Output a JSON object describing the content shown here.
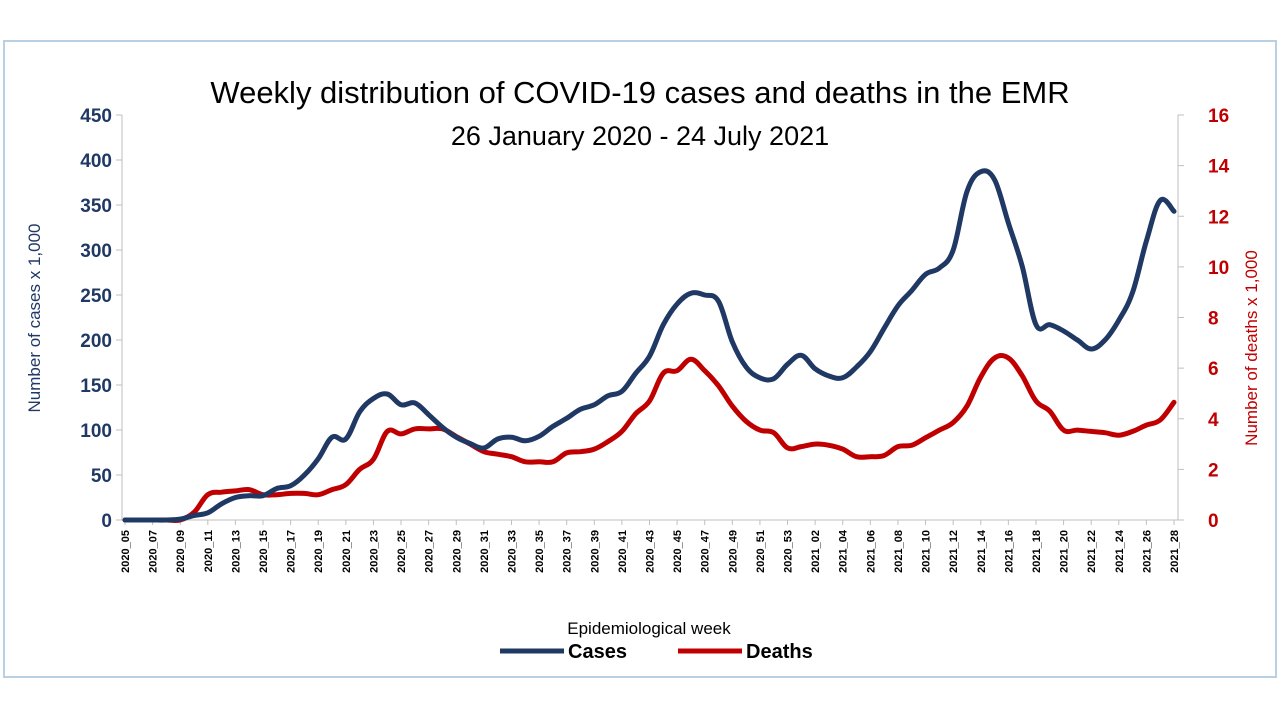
{
  "chart_data": {
    "type": "line",
    "title": "Weekly distribution of COVID-19 cases and deaths in the EMR",
    "subtitle": "26 January 2020 - 24 July 2021",
    "xlabel": "Epidemiological week",
    "ylabel_left": "Number of cases x 1,000",
    "ylabel_right": "Number of deaths x 1,000",
    "ylim_left": [
      0,
      450
    ],
    "ylim_right": [
      0,
      16
    ],
    "yticks_left": [
      "0",
      "50",
      "100",
      "150",
      "200",
      "250",
      "300",
      "350",
      "400",
      "450"
    ],
    "yticks_right": [
      "0",
      "2",
      "4",
      "6",
      "8",
      "10",
      "12",
      "14",
      "16"
    ],
    "xtick_labels": [
      "2020_05",
      "2020_07",
      "2020_09",
      "2020_11",
      "2020_13",
      "2020_15",
      "2020_17",
      "2020_19",
      "2020_21",
      "2020_23",
      "2020_25",
      "2020_27",
      "2020_29",
      "2020_31",
      "2020_33",
      "2020_35",
      "2020_37",
      "2020_39",
      "2020_41",
      "2020_43",
      "2020_45",
      "2020_47",
      "2020_49",
      "2020_51",
      "2020_53",
      "2021_02",
      "2021_04",
      "2021_06",
      "2021_08",
      "2021_10",
      "2021_12",
      "2021_14",
      "2021_16",
      "2021_18",
      "2021_20",
      "2021_22",
      "2021_24",
      "2021_26",
      "2021_28"
    ],
    "legend_position": "bottom",
    "colors": {
      "cases": "#1f3864",
      "deaths": "#c00000"
    },
    "series": [
      {
        "name": "Cases",
        "axis": "left",
        "values": [
          0,
          0,
          0,
          0,
          1,
          5,
          8,
          18,
          25,
          27,
          27,
          35,
          38,
          50,
          68,
          92,
          90,
          120,
          135,
          140,
          128,
          130,
          117,
          103,
          92,
          85,
          80,
          90,
          92,
          88,
          93,
          104,
          113,
          123,
          128,
          138,
          143,
          163,
          182,
          217,
          240,
          252,
          250,
          243,
          198,
          170,
          158,
          157,
          173,
          183,
          168,
          160,
          158,
          170,
          187,
          213,
          238,
          255,
          273,
          280,
          300,
          365,
          387,
          378,
          330,
          282,
          217,
          217,
          210,
          200,
          190,
          200,
          222,
          253,
          310,
          355,
          343
        ],
        "tick_format": "thousands"
      },
      {
        "name": "Deaths",
        "axis": "right",
        "values": [
          0,
          0,
          0,
          0,
          0,
          0.3,
          1.0,
          1.1,
          1.15,
          1.2,
          1.0,
          1.0,
          1.05,
          1.05,
          1.0,
          1.2,
          1.4,
          2.0,
          2.4,
          3.5,
          3.4,
          3.6,
          3.6,
          3.6,
          3.3,
          3.0,
          2.7,
          2.6,
          2.5,
          2.3,
          2.3,
          2.3,
          2.65,
          2.7,
          2.8,
          3.1,
          3.5,
          4.2,
          4.7,
          5.8,
          5.9,
          6.35,
          5.9,
          5.3,
          4.5,
          3.9,
          3.55,
          3.45,
          2.85,
          2.9,
          3.0,
          2.95,
          2.8,
          2.5,
          2.5,
          2.55,
          2.9,
          2.95,
          3.25,
          3.55,
          3.85,
          4.5,
          5.65,
          6.4,
          6.4,
          5.7,
          4.7,
          4.3,
          3.55,
          3.55,
          3.5,
          3.45,
          3.35,
          3.5,
          3.75,
          3.95,
          4.65
        ]
      }
    ]
  }
}
